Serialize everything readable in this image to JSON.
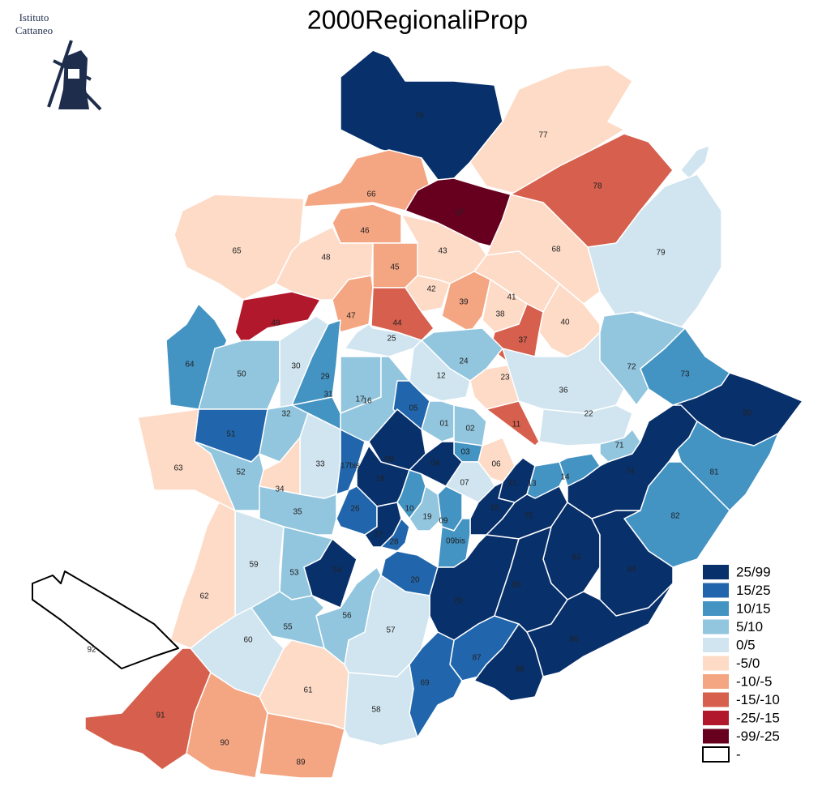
{
  "title": "2000RegionaliProp",
  "logo": {
    "line1": "Istituto",
    "line2": "Cattaneo"
  },
  "legend": [
    {
      "label": "25/99",
      "color": "#08306b"
    },
    {
      "label": "15/25",
      "color": "#2166ac"
    },
    {
      "label": "10/15",
      "color": "#4393c3"
    },
    {
      "label": "5/10",
      "color": "#92c5de"
    },
    {
      "label": "0/5",
      "color": "#d1e5f0"
    },
    {
      "label": "-5/0",
      "color": "#fddbc7"
    },
    {
      "label": "-10/-5",
      "color": "#f4a582"
    },
    {
      "label": "-15/-10",
      "color": "#d6604d"
    },
    {
      "label": "-25/-15",
      "color": "#b2182b"
    },
    {
      "label": "-99/-25",
      "color": "#67001f"
    },
    {
      "label": "-",
      "color": "#ffffff",
      "stroke": "#000000"
    }
  ],
  "regions": [
    {
      "label": "76",
      "color": "#08306b"
    },
    {
      "label": "77",
      "color": "#fddbc7"
    },
    {
      "label": "78",
      "color": "#d6604d"
    },
    {
      "label": "79",
      "color": "#d1e5f0"
    },
    {
      "label": "66",
      "color": "#f4a582"
    },
    {
      "label": "67",
      "color": "#67001f"
    },
    {
      "label": "46",
      "color": "#f4a582"
    },
    {
      "label": "65",
      "color": "#fddbc7"
    },
    {
      "label": "48",
      "color": "#fddbc7"
    },
    {
      "label": "43",
      "color": "#fddbc7"
    },
    {
      "label": "68",
      "color": "#fddbc7"
    },
    {
      "label": "45",
      "color": "#f4a582"
    },
    {
      "label": "42",
      "color": "#fddbc7"
    },
    {
      "label": "39",
      "color": "#f4a582"
    },
    {
      "label": "41",
      "color": "#fddbc7"
    },
    {
      "label": "38",
      "color": "#fddbc7"
    },
    {
      "label": "40",
      "color": "#fddbc7"
    },
    {
      "label": "49",
      "color": "#b2182b"
    },
    {
      "label": "47",
      "color": "#f4a582"
    },
    {
      "label": "44",
      "color": "#d6604d"
    },
    {
      "label": "37",
      "color": "#d6604d"
    },
    {
      "label": "64",
      "color": "#4393c3"
    },
    {
      "label": "50",
      "color": "#92c5de"
    },
    {
      "label": "30",
      "color": "#d1e5f0"
    },
    {
      "label": "25",
      "color": "#d1e5f0"
    },
    {
      "label": "29",
      "color": "#4393c3"
    },
    {
      "label": "24",
      "color": "#92c5de"
    },
    {
      "label": "12",
      "color": "#d1e5f0"
    },
    {
      "label": "23",
      "color": "#fddbc7"
    },
    {
      "label": "36",
      "color": "#d1e5f0"
    },
    {
      "label": "72",
      "color": "#92c5de"
    },
    {
      "label": "73",
      "color": "#4393c3"
    },
    {
      "label": "80",
      "color": "#08306b"
    },
    {
      "label": "17",
      "color": "#92c5de"
    },
    {
      "label": "16",
      "color": "#92c5de"
    },
    {
      "label": "31",
      "color": "#4393c3"
    },
    {
      "label": "05",
      "color": "#2166ac"
    },
    {
      "label": "01",
      "color": "#92c5de"
    },
    {
      "label": "02",
      "color": "#92c5de"
    },
    {
      "label": "22",
      "color": "#d1e5f0"
    },
    {
      "label": "11",
      "color": "#d6604d"
    },
    {
      "label": "32",
      "color": "#92c5de"
    },
    {
      "label": "51",
      "color": "#2166ac"
    },
    {
      "label": "33",
      "color": "#d1e5f0"
    },
    {
      "label": "17bis",
      "color": "#2166ac"
    },
    {
      "label": "08",
      "color": "#08306b"
    },
    {
      "label": "03",
      "color": "#4393c3"
    },
    {
      "label": "06",
      "color": "#fddbc7"
    },
    {
      "label": "04",
      "color": "#08306b"
    },
    {
      "label": "18",
      "color": "#08306b"
    },
    {
      "label": "07",
      "color": "#d1e5f0"
    },
    {
      "label": "21",
      "color": "#08306b"
    },
    {
      "label": "13",
      "color": "#4393c3"
    },
    {
      "label": "14",
      "color": "#4393c3"
    },
    {
      "label": "71",
      "color": "#92c5de"
    },
    {
      "label": "63",
      "color": "#fddbc7"
    },
    {
      "label": "52",
      "color": "#92c5de"
    },
    {
      "label": "34",
      "color": "#fddbc7"
    },
    {
      "label": "35",
      "color": "#92c5de"
    },
    {
      "label": "10",
      "color": "#4393c3"
    },
    {
      "label": "26",
      "color": "#2166ac"
    },
    {
      "label": "19",
      "color": "#92c5de"
    },
    {
      "label": "09",
      "color": "#4393c3"
    },
    {
      "label": "15",
      "color": "#08306b"
    },
    {
      "label": "75",
      "color": "#08306b"
    },
    {
      "label": "27",
      "color": "#08306b"
    },
    {
      "label": "28",
      "color": "#2166ac"
    },
    {
      "label": "09bis",
      "color": "#4393c3"
    },
    {
      "label": "59",
      "color": "#d1e5f0"
    },
    {
      "label": "53",
      "color": "#92c5de"
    },
    {
      "label": "54",
      "color": "#08306b"
    },
    {
      "label": "20",
      "color": "#2166ac"
    },
    {
      "label": "70",
      "color": "#08306b"
    },
    {
      "label": "83",
      "color": "#08306b"
    },
    {
      "label": "74",
      "color": "#08306b"
    },
    {
      "label": "81",
      "color": "#4393c3"
    },
    {
      "label": "82",
      "color": "#4393c3"
    },
    {
      "label": "84",
      "color": "#08306b"
    },
    {
      "label": "85",
      "color": "#08306b"
    },
    {
      "label": "86",
      "color": "#08306b"
    },
    {
      "label": "87",
      "color": "#2166ac"
    },
    {
      "label": "88",
      "color": "#08306b"
    },
    {
      "label": "69",
      "color": "#2166ac"
    },
    {
      "label": "56",
      "color": "#92c5de"
    },
    {
      "label": "57",
      "color": "#d1e5f0"
    },
    {
      "label": "55",
      "color": "#92c5de"
    },
    {
      "label": "60",
      "color": "#d1e5f0"
    },
    {
      "label": "61",
      "color": "#fddbc7"
    },
    {
      "label": "58",
      "color": "#d1e5f0"
    },
    {
      "label": "91",
      "color": "#d6604d"
    },
    {
      "label": "90",
      "color": "#f4a582"
    },
    {
      "label": "89",
      "color": "#f4a582"
    },
    {
      "label": "62",
      "color": "#fddbc7"
    },
    {
      "label": "92",
      "color": "#ffffff",
      "stroke": "#000000"
    }
  ]
}
